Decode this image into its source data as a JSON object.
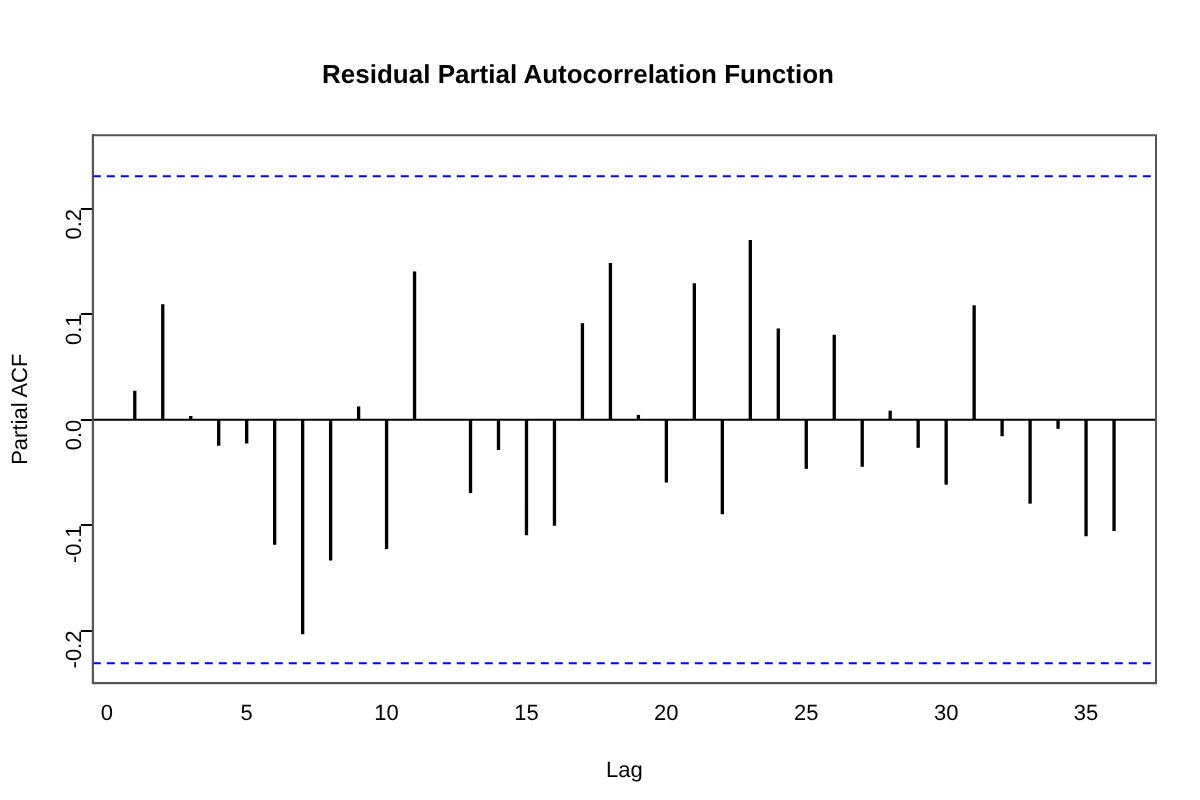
{
  "chart_data": {
    "type": "bar",
    "title": "Residual Partial Autocorrelation Function",
    "xlabel": "Lag",
    "ylabel": "Partial ACF",
    "x": [
      1,
      2,
      3,
      4,
      5,
      6,
      7,
      8,
      9,
      10,
      11,
      12,
      13,
      14,
      15,
      16,
      17,
      18,
      19,
      20,
      21,
      22,
      23,
      24,
      25,
      26,
      27,
      28,
      29,
      30,
      31,
      32,
      33,
      34,
      35,
      36
    ],
    "values": [
      0.027,
      0.109,
      0.003,
      -0.024,
      -0.022,
      -0.118,
      -0.203,
      -0.133,
      0.012,
      -0.122,
      0.14,
      null,
      -0.069,
      -0.028,
      -0.109,
      -0.1,
      0.091,
      0.148,
      0.004,
      -0.059,
      0.129,
      -0.089,
      0.17,
      0.086,
      -0.046,
      0.08,
      -0.044,
      0.008,
      -0.026,
      -0.061,
      0.108,
      -0.015,
      -0.079,
      -0.008,
      -0.11,
      -0.105
    ],
    "color": "#000000",
    "xlim": [
      -0.5,
      37.5
    ],
    "xticks": [
      0,
      5,
      10,
      15,
      20,
      25,
      30,
      35
    ],
    "ylim": [
      -0.25,
      0.27
    ],
    "yticks": [
      -0.2,
      -0.1,
      {
        "value": 0,
        "label": "0.0"
      },
      0.1,
      0.2
    ],
    "ref_lines": [
      {
        "axis": "y",
        "value": 0.231,
        "color": "#0000ff",
        "line_style": "dashed"
      },
      {
        "axis": "y",
        "value": -0.231,
        "color": "#0000ff",
        "line_style": "dashed"
      },
      {
        "axis": "y",
        "value": 0,
        "color": "#000000",
        "line_style": "solid"
      }
    ],
    "grid": false,
    "legend": false
  }
}
